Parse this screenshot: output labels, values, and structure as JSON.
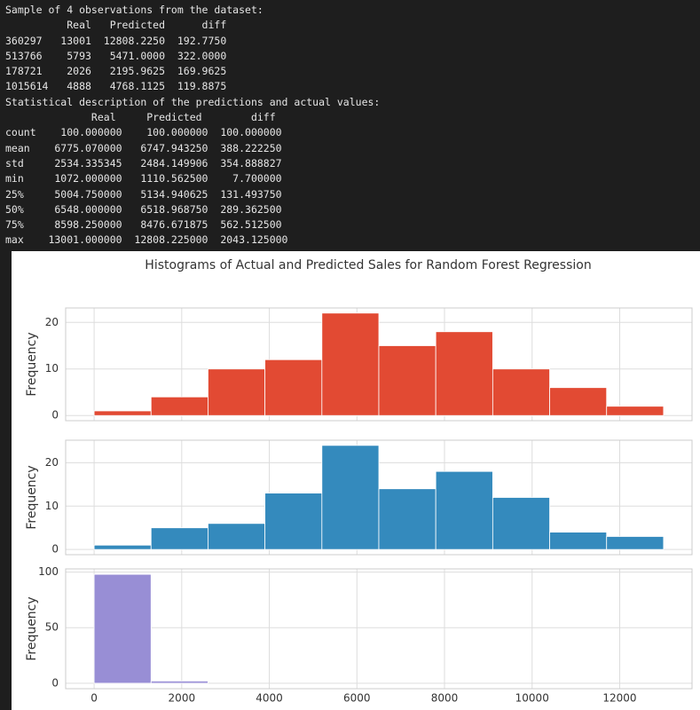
{
  "console": {
    "lines": [
      "Sample of 4 observations from the dataset:",
      "          Real   Predicted      diff",
      "360297   13001  12808.2250  192.7750",
      "513766    5793   5471.0000  322.0000",
      "178721    2026   2195.9625  169.9625",
      "1015614   4888   4768.1125  119.8875",
      "Statistical description of the predictions and actual values:",
      "              Real     Predicted        diff",
      "count    100.000000    100.000000  100.000000",
      "mean    6775.070000   6747.943250  388.222250",
      "std     2534.335345   2484.149906  354.888827",
      "min     1072.000000   1110.562500    7.700000",
      "25%     5004.750000   5134.940625  131.493750",
      "50%     6548.000000   6518.968750  289.362500",
      "75%     8598.250000   8476.671875  562.512500",
      "max    13001.000000  12808.225000  2043.125000"
    ]
  },
  "figure": {
    "title": "Histograms of Actual and Predicted Sales for Random Forest Regression"
  },
  "chart_data": [
    {
      "type": "histogram",
      "ylabel": "Frequency",
      "color": "#E24A33",
      "bins": [
        0,
        1300.1,
        2600.2,
        3900.3,
        5200.4,
        6500.5,
        7800.6,
        9100.7,
        10400.8,
        11700.9,
        13001
      ],
      "counts": [
        1,
        4,
        10,
        12,
        22,
        15,
        18,
        10,
        6,
        2
      ],
      "xlim": [
        -650,
        13651
      ],
      "ylim": [
        -1.1,
        23.1
      ],
      "xticks": [
        0,
        2000,
        4000,
        6000,
        8000,
        10000,
        12000
      ],
      "yticks": [
        0,
        10,
        20
      ],
      "grid": true
    },
    {
      "type": "histogram",
      "ylabel": "Frequency",
      "color": "#348ABD",
      "bins": [
        0,
        1300.1,
        2600.2,
        3900.3,
        5200.4,
        6500.5,
        7800.6,
        9100.7,
        10400.8,
        11700.9,
        13001
      ],
      "counts": [
        1,
        5,
        6,
        13,
        24,
        14,
        18,
        12,
        4,
        3
      ],
      "xlim": [
        -650,
        13651
      ],
      "ylim": [
        -1.2,
        25.2
      ],
      "xticks": [
        0,
        2000,
        4000,
        6000,
        8000,
        10000,
        12000
      ],
      "yticks": [
        0,
        10,
        20
      ],
      "grid": true
    },
    {
      "type": "histogram",
      "ylabel": "Frequency",
      "color": "#988ED5",
      "bins": [
        0,
        1300.1,
        2600.2,
        3900.3,
        5200.4,
        6500.5,
        7800.6,
        9100.7,
        10400.8,
        11700.9,
        13001
      ],
      "counts": [
        98,
        2,
        0,
        0,
        0,
        0,
        0,
        0,
        0,
        0
      ],
      "xlim": [
        -650,
        13651
      ],
      "ylim": [
        -4.9,
        102.9
      ],
      "xticks": [
        0,
        2000,
        4000,
        6000,
        8000,
        10000,
        12000
      ],
      "yticks": [
        0,
        50,
        100
      ],
      "grid": true,
      "xtick_labels": true
    }
  ]
}
